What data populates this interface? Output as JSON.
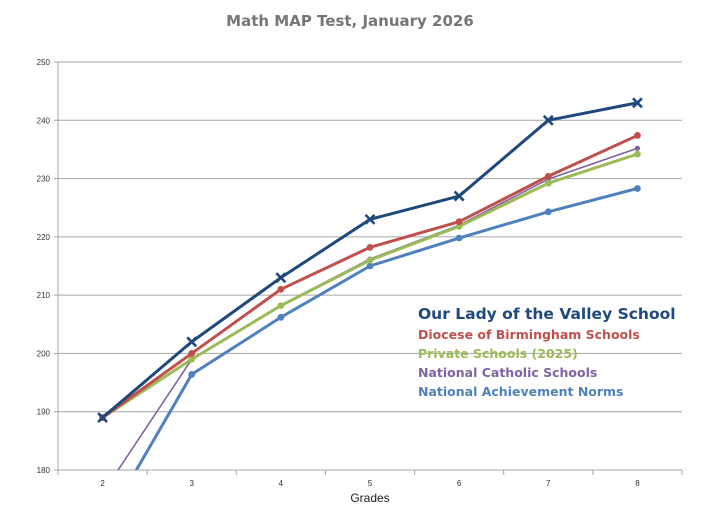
{
  "chart_data": {
    "type": "line",
    "title": "Math MAP Test, January 2026",
    "xlabel": "Grades",
    "ylabel": "",
    "categories": [
      "2",
      "3",
      "4",
      "5",
      "6",
      "7",
      "8"
    ],
    "ylim": [
      180,
      250
    ],
    "yticks": [
      180,
      190,
      200,
      210,
      220,
      230,
      240,
      250
    ],
    "grid": true,
    "legend_placement": "center-right (inside plot, text-only colored labels)",
    "series": [
      {
        "name": "Our Lady of the Valley School",
        "color": "#1F497D",
        "marker": "x",
        "width": 3,
        "values": [
          189,
          202,
          213,
          223,
          227,
          240,
          243
        ]
      },
      {
        "name": "Diocese of Birmingham Schools",
        "color": "#C0504D",
        "marker": "circle",
        "width": 3,
        "values": [
          189,
          200,
          211,
          218.2,
          222.6,
          230.4,
          237.4
        ]
      },
      {
        "name": "Private Schools (2025)",
        "color": "#9BBB59",
        "marker": "circle",
        "width": 3,
        "values": [
          189,
          199,
          208.2,
          216,
          221.8,
          229.2,
          234.2
        ]
      },
      {
        "name": "National Catholic Schools",
        "color": "#8064A2",
        "marker": "circle",
        "width": 1.6,
        "values": [
          176,
          199,
          208.3,
          216.2,
          222,
          229.9,
          235.2
        ]
      },
      {
        "name": "National Achievement Norms",
        "color": "#4F81BD",
        "marker": "circle",
        "width": 3,
        "values": [
          170,
          196.4,
          206.2,
          215,
          219.8,
          224.3,
          228.3
        ]
      }
    ]
  }
}
